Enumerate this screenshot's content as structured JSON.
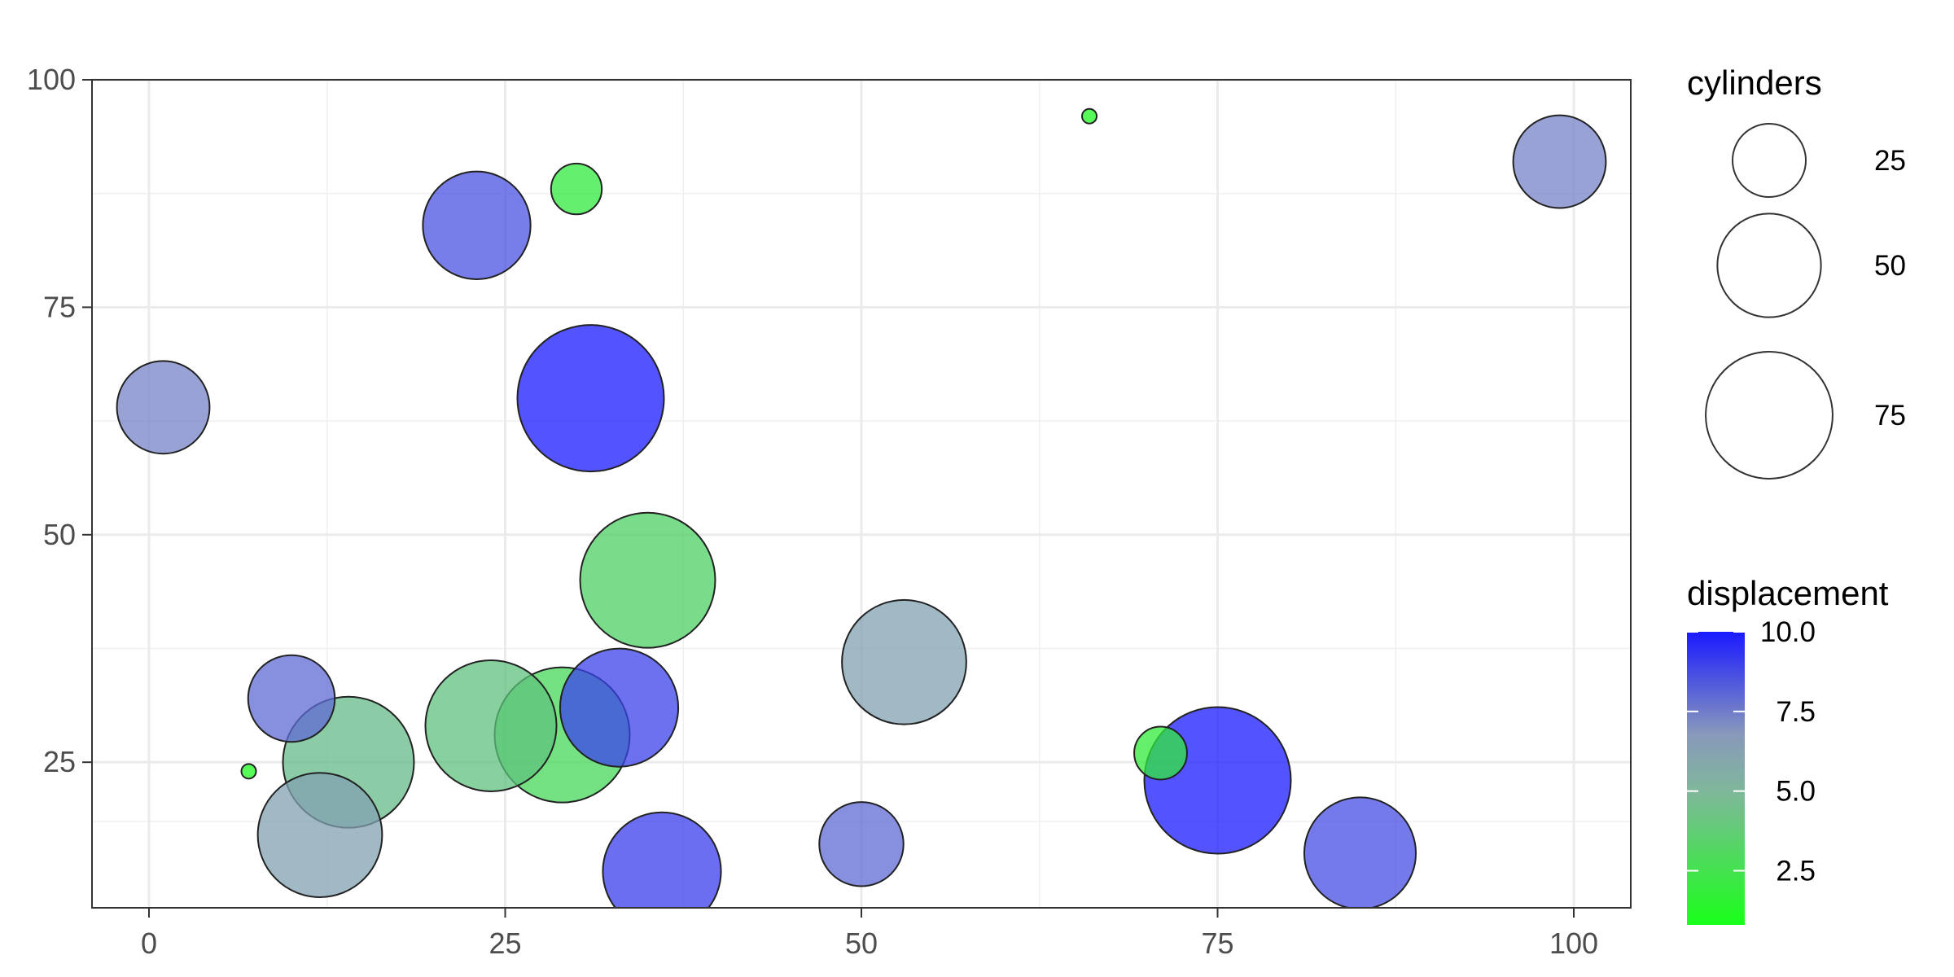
{
  "chart_data": {
    "type": "scatter",
    "title": "",
    "xlabel": "",
    "ylabel": "",
    "xlim": [
      -4,
      104
    ],
    "ylim": [
      9,
      100
    ],
    "x_ticks": [
      0,
      25,
      50,
      75,
      100
    ],
    "y_ticks": [
      25,
      50,
      75,
      100
    ],
    "x_tick_labels": [
      "0",
      "25",
      "50",
      "75",
      "100"
    ],
    "y_tick_labels": [
      "25",
      "50",
      "75",
      "100"
    ],
    "grid": true,
    "size_legend": {
      "title": "cylinders",
      "breaks": [
        25,
        50,
        75
      ],
      "labels": [
        "25",
        "50",
        "75"
      ]
    },
    "color_legend": {
      "title": "displacement",
      "range": [
        0.8,
        10.0
      ],
      "breaks": [
        10.0,
        7.5,
        5.0,
        2.5
      ],
      "labels": [
        "10.0",
        "7.5",
        "5.0",
        "2.5"
      ],
      "low_color": "#1aff1a",
      "mid_color": "#8899bb",
      "high_color": "#1a1aff"
    },
    "points": [
      {
        "x": 66,
        "y": 96,
        "size": 1,
        "color": 1.0
      },
      {
        "x": 99,
        "y": 91,
        "size": 40,
        "color": 6.2
      },
      {
        "x": 30,
        "y": 88,
        "size": 12,
        "color": 1.8
      },
      {
        "x": 23,
        "y": 84,
        "size": 54,
        "color": 8.0
      },
      {
        "x": 31,
        "y": 65,
        "size": 100,
        "color": 10.0
      },
      {
        "x": 1,
        "y": 64,
        "size": 40,
        "color": 6.2
      },
      {
        "x": 35,
        "y": 45,
        "size": 85,
        "color": 2.9
      },
      {
        "x": 53,
        "y": 36,
        "size": 72,
        "color": 5.1
      },
      {
        "x": 10,
        "y": 32,
        "size": 35,
        "color": 7.1
      },
      {
        "x": 33,
        "y": 31,
        "size": 65,
        "color": 8.6
      },
      {
        "x": 24,
        "y": 29,
        "size": 80,
        "color": 3.6
      },
      {
        "x": 29,
        "y": 28,
        "size": 85,
        "color": 2.6
      },
      {
        "x": 71,
        "y": 26,
        "size": 13,
        "color": 1.7
      },
      {
        "x": 14,
        "y": 25,
        "size": 80,
        "color": 3.9
      },
      {
        "x": 7,
        "y": 24,
        "size": 1,
        "color": 1.0
      },
      {
        "x": 75,
        "y": 23,
        "size": 100,
        "color": 10.0
      },
      {
        "x": 12,
        "y": 17,
        "size": 72,
        "color": 5.1
      },
      {
        "x": 50,
        "y": 16,
        "size": 33,
        "color": 7.1
      },
      {
        "x": 85,
        "y": 15,
        "size": 58,
        "color": 8.1
      },
      {
        "x": 36,
        "y": 13,
        "size": 65,
        "color": 8.7
      }
    ]
  }
}
